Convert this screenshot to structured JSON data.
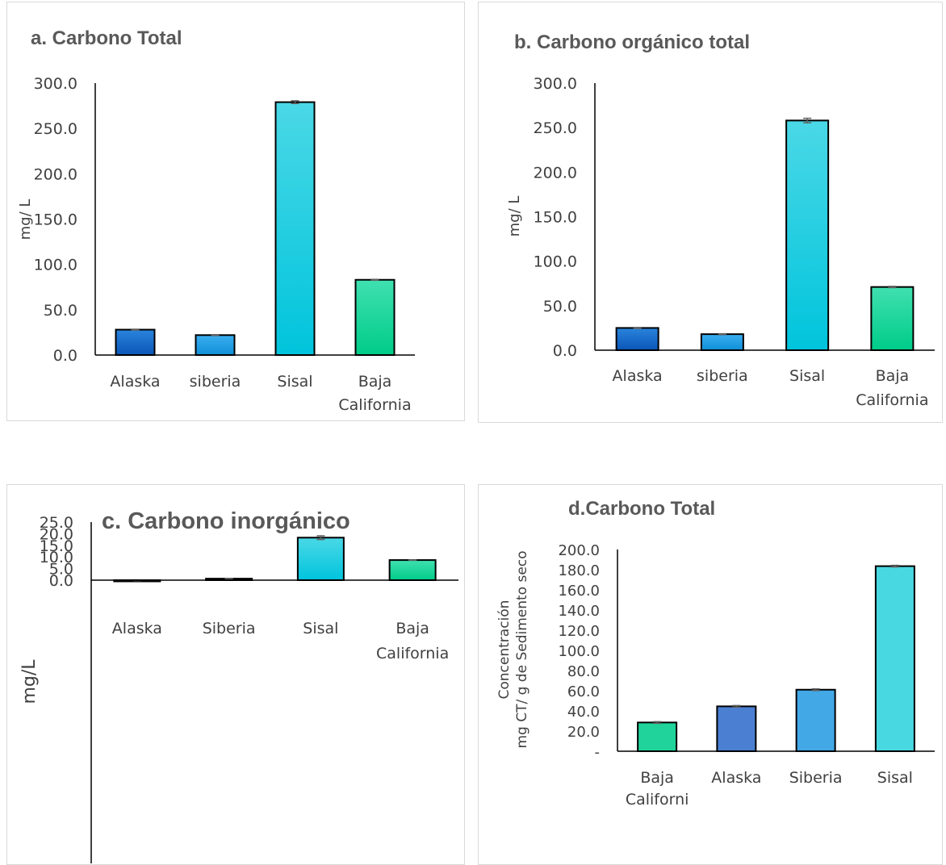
{
  "chart_data": [
    {
      "id": "a",
      "type": "bar",
      "title": "a. Carbono Total",
      "ylabel": "mg/ L",
      "ylim": [
        0,
        300
      ],
      "ytick_labels": [
        "0.0",
        "50.0",
        "100.0",
        "150.0",
        "200.0",
        "250.0",
        "300.0"
      ],
      "categories": [
        [
          "Alaska"
        ],
        [
          "siberia"
        ],
        [
          "Sisal"
        ],
        [
          "Baja",
          "California"
        ]
      ],
      "values": [
        28,
        22,
        279,
        83
      ],
      "errors": [
        0.5,
        0.5,
        1.5,
        0.5
      ],
      "colors": [
        [
          "#2a84dc",
          "#0b56b8"
        ],
        [
          "#3aaef0",
          "#0f8fd8"
        ],
        [
          "#4ad8e6",
          "#00c4dc"
        ],
        [
          "#40e0b0",
          "#00cc88"
        ]
      ]
    },
    {
      "id": "b",
      "type": "bar",
      "title": "b. Carbono orgánico total",
      "ylabel": "mg/ L",
      "ylim": [
        0,
        300
      ],
      "ytick_labels": [
        "0.0",
        "50.0",
        "100.0",
        "150.0",
        "200.0",
        "250.0",
        "300.0"
      ],
      "categories": [
        [
          "Alaska"
        ],
        [
          "siberia"
        ],
        [
          "Sisal"
        ],
        [
          "Baja",
          "California"
        ]
      ],
      "values": [
        25,
        18,
        258,
        71
      ],
      "errors": [
        0.5,
        0.5,
        2.5,
        0.7
      ],
      "colors": [
        [
          "#2a84dc",
          "#0b56b8"
        ],
        [
          "#3aaef0",
          "#0f8fd8"
        ],
        [
          "#4ad8e6",
          "#00c4dc"
        ],
        [
          "#40e0b0",
          "#00cc88"
        ]
      ]
    },
    {
      "id": "c",
      "type": "bar",
      "title": "c. Carbono inorgánico",
      "ylabel": "mg/L",
      "ylim": [
        0,
        25
      ],
      "ytick_labels": [
        "0.0",
        "5.0",
        "10.0",
        "15.0",
        "20.0",
        "25.0"
      ],
      "categories": [
        [
          "Alaska"
        ],
        [
          "Siberia"
        ],
        [
          "Sisal"
        ],
        [
          "Baja",
          "California"
        ]
      ],
      "values": [
        -0.15,
        0.65,
        18.3,
        8.65
      ],
      "errors": [
        0.05,
        0.05,
        0.8,
        0.05
      ],
      "colors": [
        [
          "#2a84dc",
          "#0b56b8"
        ],
        [
          "#3aaef0",
          "#0f8fd8"
        ],
        [
          "#4ad8e6",
          "#00c4dc"
        ],
        [
          "#40e0b0",
          "#00cc88"
        ]
      ]
    },
    {
      "id": "d",
      "type": "bar",
      "title": "d.Carbono Total",
      "ylabel": [
        "Concentración",
        "mg CT/ g de Sedimento seco"
      ],
      "ylim": [
        0,
        200
      ],
      "ytick_labels": [
        "-",
        "20.0",
        "40.0",
        "60.0",
        "80.0",
        "100.0",
        "120.0",
        "140.0",
        "160.0",
        "180.0",
        "200.0"
      ],
      "categories": [
        [
          "Baja",
          "Californi"
        ],
        [
          "Alaska"
        ],
        [
          "Siberia"
        ],
        [
          "Sisal"
        ]
      ],
      "values": [
        28.5,
        44.5,
        61,
        183.5
      ],
      "errors": [
        0.8,
        0.8,
        0.8,
        0.8
      ],
      "colors": [
        [
          "#1fd39a",
          "#1fd39a"
        ],
        [
          "#4a7fd2",
          "#4a7fd2"
        ],
        [
          "#42a8e6",
          "#42a8e6"
        ],
        [
          "#48d8e2",
          "#48d8e2"
        ]
      ]
    }
  ]
}
